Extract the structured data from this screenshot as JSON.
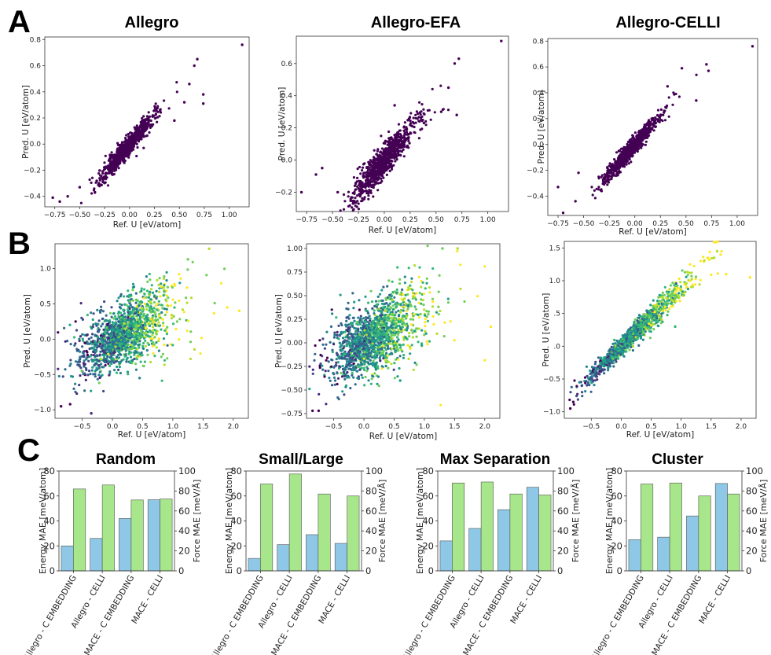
{
  "colors": {
    "dark_purple": "#440154",
    "viridis": [
      "#440154",
      "#482878",
      "#3e4989",
      "#31688e",
      "#26828e",
      "#1f9e89",
      "#35b779",
      "#6ece58",
      "#b5de2b",
      "#fde725"
    ],
    "energy_bar": "#8ec8e6",
    "force_bar": "#a7e68a",
    "bar_edge": "#555555"
  },
  "panel_labels": {
    "a": "A",
    "b": "B",
    "c": "C"
  },
  "row_a_titles": [
    "Allegro",
    "Allegro-EFA",
    "Allegro-CELLI"
  ],
  "chart_data": [
    {
      "id": "A1",
      "type": "scatter",
      "title": "Allegro",
      "color": "dark",
      "xlabel": "Ref. U [eV/atom]",
      "ylabel": "Pred. U [eV/atom]",
      "xlim": [
        -0.85,
        1.2
      ],
      "ylim": [
        -0.48,
        0.82
      ],
      "xticks": [
        -0.75,
        -0.5,
        -0.25,
        0.0,
        0.25,
        0.5,
        0.75,
        1.0
      ],
      "xtick_labels": [
        "−0.75",
        "−0.50",
        "−0.25",
        "0.00",
        "0.25",
        "0.50",
        "0.75",
        "1.00"
      ],
      "yticks": [
        -0.4,
        -0.2,
        0.0,
        0.2,
        0.4,
        0.6,
        0.8
      ],
      "ytick_labels": [
        "−0.4",
        "−0.2",
        "0.0",
        "0.2",
        "0.4",
        "0.6",
        "0.8"
      ],
      "n_points": 900,
      "slope": 0.9,
      "spread": 0.035,
      "x_center": -0.05,
      "x_sd": 0.12,
      "outliers": [
        [
          1.13,
          0.76
        ],
        [
          0.68,
          0.65
        ],
        [
          0.65,
          0.6
        ],
        [
          0.6,
          0.46
        ],
        [
          0.74,
          0.38
        ],
        [
          0.74,
          0.31
        ],
        [
          -0.77,
          -0.41
        ],
        [
          -0.7,
          -0.44
        ],
        [
          -0.62,
          -0.4
        ],
        [
          -0.5,
          -0.33
        ],
        [
          0.55,
          0.32
        ],
        [
          0.45,
          0.18
        ]
      ]
    },
    {
      "id": "A2",
      "type": "scatter",
      "title": "Allegro-EFA",
      "color": "dark",
      "xlabel": "Ref. U [eV/atom]",
      "ylabel": "Pred. U [eV/atom]",
      "xlim": [
        -0.85,
        1.2
      ],
      "ylim": [
        -0.32,
        0.77
      ],
      "xticks": [
        -0.75,
        -0.5,
        -0.25,
        0.0,
        0.25,
        0.5,
        0.75,
        1.0
      ],
      "xtick_labels": [
        "−0.75",
        "−0.50",
        "−0.25",
        "0.00",
        "0.25",
        "0.50",
        "0.75",
        "1.00"
      ],
      "yticks": [
        -0.2,
        0.0,
        0.2,
        0.4,
        0.6
      ],
      "ytick_labels": [
        "−0.2",
        "0.0",
        "0.2",
        "0.4",
        "0.6"
      ],
      "n_points": 900,
      "slope": 0.75,
      "spread": 0.045,
      "x_center": -0.02,
      "x_sd": 0.14,
      "outliers": [
        [
          1.13,
          0.74
        ],
        [
          0.72,
          0.63
        ],
        [
          0.68,
          0.6
        ],
        [
          -0.8,
          -0.2
        ],
        [
          -0.66,
          -0.09
        ],
        [
          -0.6,
          -0.05
        ],
        [
          -0.45,
          -0.2
        ],
        [
          -0.3,
          -0.27
        ],
        [
          0.1,
          0.34
        ],
        [
          0.55,
          0.3
        ],
        [
          0.7,
          0.28
        ],
        [
          0.62,
          0.45
        ]
      ]
    },
    {
      "id": "A3",
      "type": "scatter",
      "title": "Allegro-CELLI",
      "color": "dark",
      "xlabel": "Ref. U [eV/atom]",
      "ylabel": "Pred. U [eV/atom]",
      "xlim": [
        -0.85,
        1.2
      ],
      "ylim": [
        -0.55,
        0.82
      ],
      "xticks": [
        -0.75,
        -0.5,
        -0.25,
        0.0,
        0.25,
        0.5,
        0.75,
        1.0
      ],
      "xtick_labels": [
        "−0.75",
        "−0.50",
        "−0.25",
        "0.00",
        "0.25",
        "0.50",
        "0.75",
        "1.00"
      ],
      "yticks": [
        -0.4,
        -0.2,
        0.0,
        0.2,
        0.4,
        0.6,
        0.8
      ],
      "ytick_labels": [
        "−0.4",
        "−0.2",
        "0.0",
        "0.2",
        "0.4",
        "0.6",
        "0.8"
      ],
      "n_points": 900,
      "slope": 0.9,
      "spread": 0.03,
      "x_center": -0.05,
      "x_sd": 0.12,
      "outliers": [
        [
          1.15,
          0.76
        ],
        [
          0.7,
          0.62
        ],
        [
          0.72,
          0.57
        ],
        [
          -0.7,
          -0.53
        ],
        [
          -0.58,
          -0.44
        ],
        [
          -0.75,
          -0.33
        ],
        [
          -0.55,
          -0.22
        ],
        [
          0.46,
          0.59
        ],
        [
          0.32,
          0.45
        ],
        [
          0.6,
          0.34
        ]
      ]
    },
    {
      "id": "B1",
      "type": "scatter",
      "color": "viridis",
      "xlabel": "Ref. U [eV/atom]",
      "ylabel": "Pred. U [eV/atom]",
      "xlim": [
        -0.95,
        2.25
      ],
      "ylim": [
        -1.12,
        1.35
      ],
      "xticks": [
        -0.5,
        0.0,
        0.5,
        1.0,
        1.5,
        2.0
      ],
      "xtick_labels": [
        "−0.5",
        "0.0",
        "0.5",
        "1.0",
        "1.5",
        "2.0"
      ],
      "yticks": [
        -1.0,
        -0.5,
        0.0,
        0.5,
        1.0
      ],
      "ytick_labels": [
        "−1.0",
        "−0.5",
        "0.0",
        "0.5",
        "1.0"
      ],
      "n_points": 1500,
      "slope": 0.45,
      "spread": 0.18,
      "x_center": 0.15,
      "x_sd": 0.35,
      "outliers": [
        [
          1.6,
          1.28
        ],
        [
          1.25,
          1.13
        ],
        [
          2.1,
          0.4
        ],
        [
          1.9,
          0.45
        ],
        [
          -0.85,
          -0.95
        ],
        [
          -0.7,
          -0.92
        ],
        [
          -0.35,
          -1.05
        ],
        [
          0.45,
          -0.55
        ]
      ]
    },
    {
      "id": "B2",
      "type": "scatter",
      "color": "viridis",
      "xlabel": "Ref. U [eV/atom]",
      "ylabel": "Pred. U [eV/atom]",
      "xlim": [
        -0.95,
        2.25
      ],
      "ylim": [
        -0.8,
        1.05
      ],
      "xticks": [
        -0.5,
        0.0,
        0.5,
        1.0,
        1.5,
        2.0
      ],
      "xtick_labels": [
        "−0.5",
        "0.0",
        "0.5",
        "1.0",
        "1.5",
        "2.0"
      ],
      "yticks": [
        -0.75,
        -0.5,
        -0.25,
        0.0,
        0.25,
        0.5,
        0.75,
        1.0
      ],
      "ytick_labels": [
        "−0.75",
        "−0.50",
        "−0.25",
        "0.00",
        "0.25",
        "0.50",
        "0.75",
        "1.00"
      ],
      "n_points": 1500,
      "slope": 0.35,
      "spread": 0.15,
      "x_center": 0.15,
      "x_sd": 0.35,
      "outliers": [
        [
          1.55,
          1.0
        ],
        [
          1.3,
          1.0
        ],
        [
          2.1,
          0.17
        ],
        [
          -0.85,
          -0.72
        ],
        [
          -0.75,
          -0.72
        ],
        [
          0.6,
          -0.4
        ]
      ]
    },
    {
      "id": "B3",
      "type": "scatter",
      "color": "viridis",
      "xlabel": "Ref. U [eV/atom]",
      "ylabel": "Pred. U [eV/atom]",
      "xlim": [
        -0.95,
        2.25
      ],
      "ylim": [
        -1.1,
        1.6
      ],
      "xticks": [
        -0.5,
        0.0,
        0.5,
        1.0,
        1.5,
        2.0
      ],
      "xtick_labels": [
        "−0.5",
        "0.0",
        "0.5",
        "1.0",
        "1.5",
        "2.0"
      ],
      "yticks": [
        -1.0,
        -0.5,
        0.0,
        0.5,
        1.0,
        1.5
      ],
      "ytick_labels": [
        "−1.0",
        "−0.5",
        ".0",
        ".5",
        "1.0",
        "1.5"
      ],
      "n_points": 1500,
      "slope": 0.9,
      "spread": 0.06,
      "x_center": 0.15,
      "x_sd": 0.35,
      "outliers": [
        [
          2.15,
          1.05
        ],
        [
          1.6,
          1.45
        ],
        [
          1.55,
          1.35
        ],
        [
          1.75,
          1.1
        ],
        [
          -0.85,
          -0.95
        ],
        [
          -0.8,
          -0.85
        ],
        [
          0.9,
          0.3
        ]
      ]
    },
    {
      "id": "C1",
      "type": "bar",
      "title": "Random",
      "categories": [
        "Allegro - C EMBEDDING",
        "Allegro - CELLI",
        "MACE - C EMBEDDING",
        "MACE - CELLI"
      ],
      "series": [
        {
          "name": "Energy MAE [meV/atom]",
          "axis": "left",
          "values": [
            20,
            26,
            42,
            57
          ]
        },
        {
          "name": "Force MAE [meV/Å]",
          "axis": "right",
          "values": [
            82,
            86,
            71,
            72
          ]
        }
      ],
      "ylabel": "Energy MAE [meV/atom]",
      "ylabel_right": "Force MAE [meV/Å]",
      "ylim": [
        0,
        80
      ],
      "ylim_right": [
        0,
        100
      ],
      "yticks": [
        0,
        20,
        40,
        60,
        80
      ],
      "yticks_right": [
        0,
        20,
        40,
        60,
        80,
        100
      ]
    },
    {
      "id": "C2",
      "type": "bar",
      "title": "Small/Large",
      "categories": [
        "Allegro - C EMBEDDING",
        "Allegro - CELLI",
        "MACE - C EMBEDDING",
        "MACE - CELLI"
      ],
      "series": [
        {
          "name": "Energy MAE [meV/atom]",
          "axis": "left",
          "values": [
            10,
            21,
            29,
            22
          ]
        },
        {
          "name": "Force MAE [meV/Å]",
          "axis": "right",
          "values": [
            87,
            97,
            77,
            75
          ]
        }
      ],
      "ylabel": "Energy MAE [meV/atom]",
      "ylabel_right": "Force MAE [meV/Å]",
      "ylim": [
        0,
        80
      ],
      "ylim_right": [
        0,
        100
      ],
      "yticks": [
        0,
        20,
        40,
        60,
        80
      ],
      "yticks_right": [
        0,
        20,
        40,
        60,
        80,
        100
      ]
    },
    {
      "id": "C3",
      "type": "bar",
      "title": "Max Separation",
      "categories": [
        "Allegro - C EMBEDDING",
        "Allegro - CELLI",
        "MACE - C EMBEDDING",
        "MACE - CELLI"
      ],
      "series": [
        {
          "name": "Energy MAE [meV/atom]",
          "axis": "left",
          "values": [
            24,
            34,
            49,
            67
          ]
        },
        {
          "name": "Force MAE [meV/Å]",
          "axis": "right",
          "values": [
            88,
            89,
            77,
            76
          ]
        }
      ],
      "ylabel": "Energy MAE [meV/atom]",
      "ylabel_right": "Force MAE [meV/Å]",
      "ylim": [
        0,
        80
      ],
      "ylim_right": [
        0,
        100
      ],
      "yticks": [
        0,
        20,
        40,
        60,
        80
      ],
      "yticks_right": [
        0,
        20,
        40,
        60,
        80,
        100
      ]
    },
    {
      "id": "C4",
      "type": "bar",
      "title": "Cluster",
      "categories": [
        "Allegro - C EMBEDDING",
        "Allegro - CELLI",
        "MACE - C EMBEDDING",
        "MACE - CELLI"
      ],
      "series": [
        {
          "name": "Energy MAE [meV/atom]",
          "axis": "left",
          "values": [
            25,
            27,
            44,
            70
          ]
        },
        {
          "name": "Force MAE [meV/Å]",
          "axis": "right",
          "values": [
            87,
            88,
            75,
            77
          ]
        }
      ],
      "ylabel": "Energy MAE [meV/atom]",
      "ylabel_right": "Force MAE [meV/Å]",
      "ylim": [
        0,
        80
      ],
      "ylim_right": [
        0,
        100
      ],
      "yticks": [
        0,
        20,
        40,
        60,
        80
      ],
      "yticks_right": [
        0,
        20,
        40,
        60,
        80,
        100
      ]
    }
  ]
}
